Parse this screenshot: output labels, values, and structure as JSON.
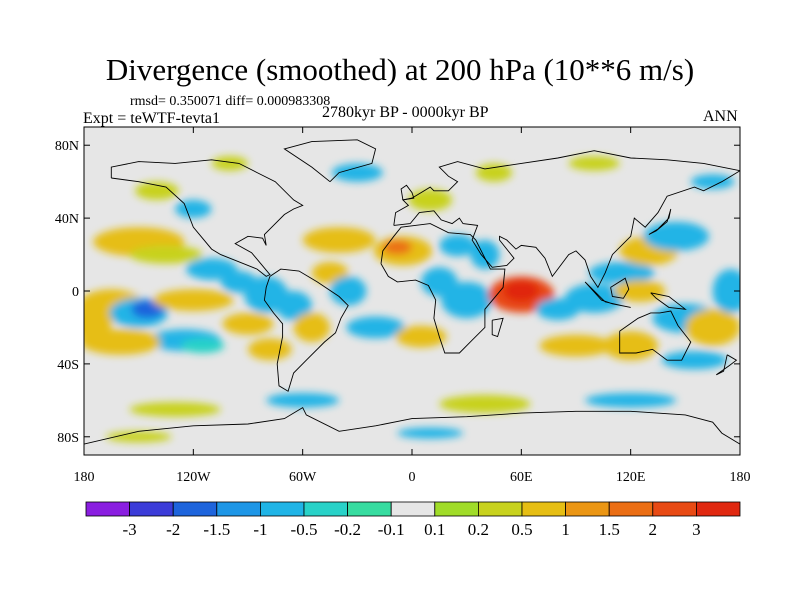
{
  "chart_data": {
    "type": "heatmap",
    "title": "Divergence (smoothed) at 200 hPa (10**6 m/s)",
    "stats": "rmsd= 0.350071  diff= 0.000983308",
    "experiment": "Expt = teWTF-tevta1",
    "period": "2780kyr BP - 0000kyr BP",
    "season": "ANN",
    "x_range": [
      -180,
      180
    ],
    "y_range": [
      -90,
      90
    ],
    "x_ticks": [
      {
        "value": -180,
        "label": "180"
      },
      {
        "value": -120,
        "label": "120W"
      },
      {
        "value": -60,
        "label": "60W"
      },
      {
        "value": 0,
        "label": "0"
      },
      {
        "value": 60,
        "label": "60E"
      },
      {
        "value": 120,
        "label": "120E"
      },
      {
        "value": 180,
        "label": "180"
      }
    ],
    "y_ticks": [
      {
        "value": 80,
        "label": "80N"
      },
      {
        "value": 40,
        "label": "40N"
      },
      {
        "value": 0,
        "label": "0"
      },
      {
        "value": -40,
        "label": "40S"
      },
      {
        "value": -80,
        "label": "80S"
      }
    ],
    "colorbar": {
      "labels": [
        "-3",
        "-2",
        "-1.5",
        "-1",
        "-0.5",
        "-0.2",
        "-0.1",
        "0.1",
        "0.2",
        "0.5",
        "1",
        "1.5",
        "2",
        "3"
      ],
      "colors": [
        "#8a1ee0",
        "#3c3cd8",
        "#1e64dc",
        "#1e96e6",
        "#20b4e6",
        "#28d2c8",
        "#37dca0",
        "#e6e6e6",
        "#a0dc28",
        "#c8d21e",
        "#e6be14",
        "#eb9614",
        "#eb6e14",
        "#e84a14",
        "#e02810"
      ]
    },
    "features": [
      {
        "name": "arabian-sea-divergence-max",
        "lon": 60,
        "lat": 0,
        "level": 3
      },
      {
        "name": "west-pacific-convergence",
        "lon": -145,
        "lat": -10,
        "level": -2
      },
      {
        "name": "south-pacific-convergence",
        "lon": -125,
        "lat": -25,
        "level": -1
      },
      {
        "name": "north-atlantic-divergence",
        "lon": -5,
        "lat": 22,
        "level": 1
      },
      {
        "name": "maritime-continent-convergence",
        "lon": 100,
        "lat": -5,
        "level": -1
      }
    ]
  }
}
